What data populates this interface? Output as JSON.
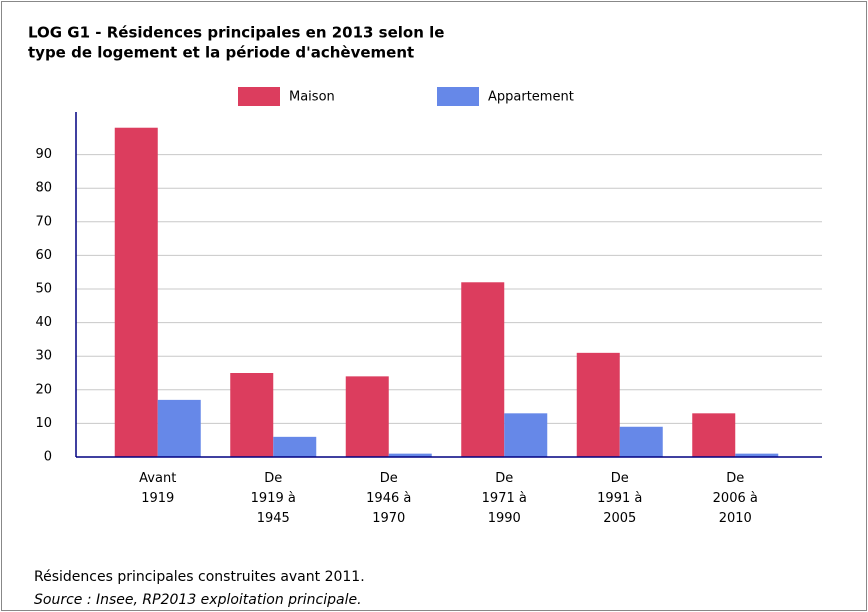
{
  "chart_data": {
    "type": "bar",
    "title": [
      "LOG G1 - Résidences principales en 2013 selon le",
      "type de logement et la période d'achèvement"
    ],
    "categories": [
      [
        "Avant",
        "1919"
      ],
      [
        "De",
        "1919 à",
        "1945"
      ],
      [
        "De",
        "1946 à",
        "1970"
      ],
      [
        "De",
        "1971 à",
        "1990"
      ],
      [
        "De",
        "1991 à",
        "2005"
      ],
      [
        "De",
        "2006 à",
        "2010"
      ]
    ],
    "series": [
      {
        "name": "Maison",
        "color": "#dc3d5e",
        "values": [
          98,
          25,
          24,
          52,
          31,
          13
        ]
      },
      {
        "name": "Appartement",
        "color": "#6688e8",
        "values": [
          17,
          6,
          1,
          13,
          9,
          1
        ]
      }
    ],
    "ylim": [
      0,
      100
    ],
    "yticks": [
      0,
      10,
      20,
      30,
      40,
      50,
      60,
      70,
      80,
      90
    ],
    "grid": true,
    "notes": [
      "Résidences principales construites avant 2011.",
      "Source : Insee, RP2013 exploitation principale."
    ]
  }
}
